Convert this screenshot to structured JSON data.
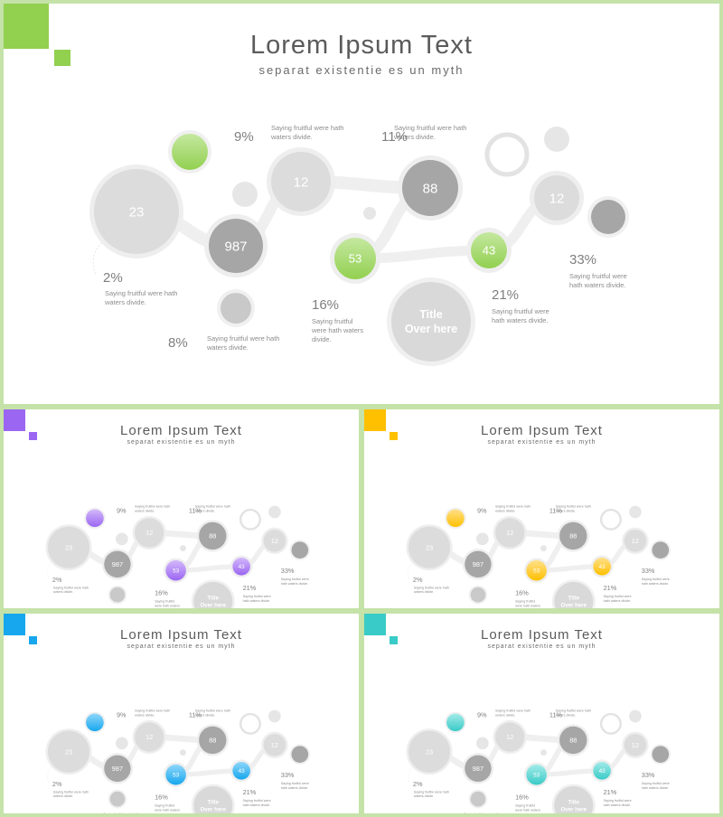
{
  "diagram": {
    "title": "Lorem Ipsum Text",
    "subtitle": "separat existentie es un myth",
    "nodes": {
      "n23": "23",
      "n987": "987",
      "n12a": "12",
      "n88": "88",
      "n53": "53",
      "n43": "43",
      "n12b": "12"
    },
    "center_title": [
      "Title",
      "Over here"
    ],
    "callouts": [
      {
        "id": "c9",
        "percent": "9%",
        "text": [
          "Saying fruitful were hath",
          "waters divide."
        ]
      },
      {
        "id": "c11",
        "percent": "11%",
        "text": [
          "Saying fruitful were hath",
          "waters divide."
        ]
      },
      {
        "id": "c2",
        "percent": "2%",
        "text": [
          "Saying fruitful were hath",
          "waters divide."
        ]
      },
      {
        "id": "c8",
        "percent": "8%",
        "text": [
          "Saying fruitful were hath",
          "waters divide."
        ]
      },
      {
        "id": "c16",
        "percent": "16%",
        "text": [
          "Saying fruitful",
          "were hath waters",
          "divide."
        ]
      },
      {
        "id": "c21",
        "percent": "21%",
        "text": [
          "Saying fruitful were",
          "hath waters divide."
        ]
      },
      {
        "id": "c33",
        "percent": "33%",
        "text": [
          "Saying fruitful were",
          "hath waters divide."
        ]
      }
    ]
  },
  "variants": [
    {
      "id": "main",
      "accent": "#92d050",
      "accent_light": "#c5e8a0"
    },
    {
      "id": "s1",
      "accent": "#9b66f2",
      "accent_light": "#d3b8fa"
    },
    {
      "id": "s2",
      "accent": "#ffc000",
      "accent_light": "#ffe08a"
    },
    {
      "id": "s3",
      "accent": "#16a7ee",
      "accent_light": "#8fd6fa"
    },
    {
      "id": "s4",
      "accent": "#39cbc7",
      "accent_light": "#a4ebe9"
    }
  ],
  "colors": {
    "connector": "#efefef",
    "node_light": "#dcdcdc",
    "node_dark": "#a6a6a6",
    "text": "#7f7f7f"
  }
}
